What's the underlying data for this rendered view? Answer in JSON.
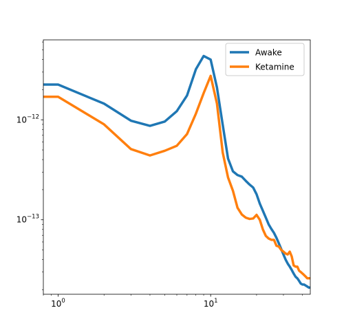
{
  "chart_data": {
    "type": "line",
    "xscale": "log",
    "yscale": "log",
    "xlim": [
      0.8,
      45
    ],
    "ylim": [
      1.8e-14,
      6.3e-12
    ],
    "grid": false,
    "legend": {
      "placement": "top-right",
      "entries": [
        "Awake",
        "Ketamine"
      ]
    },
    "x_ticks": [
      {
        "value": 1,
        "base": "10",
        "exp": "0"
      },
      {
        "value": 10,
        "base": "10",
        "exp": "1"
      }
    ],
    "y_ticks": [
      {
        "value": 1e-13,
        "base": "10",
        "exp": "−13"
      },
      {
        "value": 1e-12,
        "base": "10",
        "exp": "−12"
      }
    ],
    "series": [
      {
        "name": "Awake",
        "color": "#1f77b4",
        "x": [
          0.8,
          1,
          2,
          3,
          4,
          5,
          6,
          7,
          8,
          9,
          10,
          11,
          12,
          13,
          14,
          15,
          16,
          17,
          18,
          19,
          20,
          21,
          22,
          23,
          24,
          25,
          26,
          27,
          28,
          29,
          30,
          31,
          32,
          33,
          34,
          35,
          36,
          37,
          38,
          39,
          40,
          41,
          42,
          43,
          44,
          45
        ],
        "y": [
          2.25e-12,
          2.25e-12,
          1.45e-12,
          9.8e-13,
          8.7e-13,
          9.6e-13,
          1.22e-12,
          1.75e-12,
          3.2e-12,
          4.35e-12,
          4e-12,
          2.1e-12,
          8.9e-13,
          4.1e-13,
          3.05e-13,
          2.8e-13,
          2.7e-13,
          2.45e-13,
          2.25e-13,
          2.1e-13,
          1.8e-13,
          1.45e-13,
          1.23e-13,
          1.05e-13,
          9e-14,
          8.1e-14,
          7.4e-14,
          6.6e-14,
          5.8e-14,
          5.1e-14,
          4.5e-14,
          4e-14,
          3.65e-14,
          3.4e-14,
          3.15e-14,
          2.9e-14,
          2.7e-14,
          2.6e-14,
          2.45e-14,
          2.3e-14,
          2.25e-14,
          2.25e-14,
          2.2e-14,
          2.15e-14,
          2.1e-14,
          2.1e-14
        ]
      },
      {
        "name": "Ketamine",
        "color": "#ff7f0e",
        "x": [
          0.8,
          1,
          2,
          3,
          4,
          5,
          6,
          7,
          8,
          9,
          10,
          11,
          12,
          13,
          14,
          15,
          16,
          17,
          18,
          19,
          20,
          21,
          22,
          23,
          24,
          25,
          26,
          27,
          28,
          29,
          30,
          31,
          32,
          33,
          34,
          35,
          36,
          37,
          38,
          39,
          40,
          41,
          42,
          43,
          44,
          45
        ],
        "y": [
          1.7e-12,
          1.7e-12,
          9e-13,
          5.1e-13,
          4.4e-13,
          4.9e-13,
          5.5e-13,
          7.2e-13,
          1.15e-12,
          1.85e-12,
          2.75e-12,
          1.45e-12,
          4.7e-13,
          2.65e-13,
          1.95e-13,
          1.32e-13,
          1.13e-13,
          1.05e-13,
          1.02e-13,
          1.03e-13,
          1.12e-13,
          1e-13,
          8e-14,
          6.9e-14,
          6.5e-14,
          6.3e-14,
          6.3e-14,
          5.5e-14,
          5.4e-14,
          5e-14,
          4.8e-14,
          4.6e-14,
          4.5e-14,
          4.8e-14,
          4.3e-14,
          3.5e-14,
          3.4e-14,
          3.4e-14,
          3.1e-14,
          3e-14,
          2.9e-14,
          2.8e-14,
          2.7e-14,
          2.6e-14,
          2.6e-14,
          2.6e-14
        ]
      }
    ]
  }
}
